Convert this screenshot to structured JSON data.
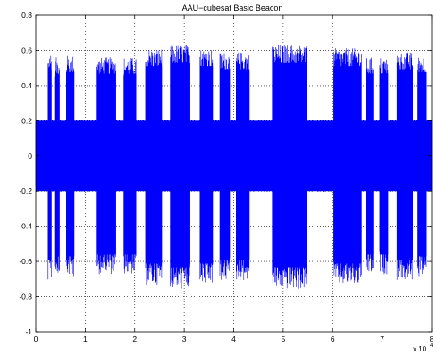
{
  "chart_data": {
    "type": "line",
    "title": "AAU−cubesat Basic Beacon",
    "xlabel": "",
    "ylabel": "",
    "x_multiplier_label": "x 10",
    "x_multiplier_exponent": "4",
    "xlim": [
      0,
      8
    ],
    "ylim": [
      -1,
      0.8
    ],
    "x_ticks": [
      0,
      1,
      2,
      3,
      4,
      5,
      6,
      7,
      8
    ],
    "y_ticks": [
      -1,
      -0.8,
      -0.6,
      -0.4,
      -0.2,
      0,
      0.2,
      0.4,
      0.6,
      0.8
    ],
    "x_tick_labels": [
      "0",
      "1",
      "2",
      "3",
      "4",
      "5",
      "6",
      "7",
      "8"
    ],
    "y_tick_labels": [
      "-1",
      "-0.8",
      "-0.6",
      "-0.4",
      "-0.2",
      "0",
      "0.2",
      "0.4",
      "0.6",
      "0.8"
    ],
    "grid": true,
    "grid_style": "dotted",
    "series": [
      {
        "color": "#0000ff",
        "noise_band": [
          -0.2,
          0.2
        ],
        "segments": [
          {
            "x_start": 0.0,
            "x_end": 0.25,
            "amplitude": 0.2
          },
          {
            "x_start": 0.25,
            "x_end": 0.32,
            "amplitude": 0.58
          },
          {
            "x_start": 0.32,
            "x_end": 0.38,
            "amplitude": 0.2
          },
          {
            "x_start": 0.38,
            "x_end": 0.48,
            "amplitude": 0.55
          },
          {
            "x_start": 0.48,
            "x_end": 0.62,
            "amplitude": 0.2
          },
          {
            "x_start": 0.62,
            "x_end": 0.78,
            "amplitude": 0.56
          },
          {
            "x_start": 0.78,
            "x_end": 1.22,
            "amplitude": 0.2
          },
          {
            "x_start": 1.22,
            "x_end": 1.62,
            "amplitude": 0.55
          },
          {
            "x_start": 1.62,
            "x_end": 1.78,
            "amplitude": 0.2
          },
          {
            "x_start": 1.78,
            "x_end": 2.03,
            "amplitude": 0.55
          },
          {
            "x_start": 2.03,
            "x_end": 2.22,
            "amplitude": 0.2
          },
          {
            "x_start": 2.22,
            "x_end": 2.55,
            "amplitude": 0.6
          },
          {
            "x_start": 2.55,
            "x_end": 2.72,
            "amplitude": 0.2
          },
          {
            "x_start": 2.72,
            "x_end": 3.12,
            "amplitude": 0.62
          },
          {
            "x_start": 3.12,
            "x_end": 3.32,
            "amplitude": 0.2
          },
          {
            "x_start": 3.32,
            "x_end": 3.58,
            "amplitude": 0.6
          },
          {
            "x_start": 3.58,
            "x_end": 3.72,
            "amplitude": 0.2
          },
          {
            "x_start": 3.72,
            "x_end": 3.92,
            "amplitude": 0.58
          },
          {
            "x_start": 3.92,
            "x_end": 4.05,
            "amplitude": 0.2
          },
          {
            "x_start": 4.05,
            "x_end": 4.32,
            "amplitude": 0.58
          },
          {
            "x_start": 4.32,
            "x_end": 4.78,
            "amplitude": 0.2
          },
          {
            "x_start": 4.78,
            "x_end": 5.48,
            "amplitude": 0.62
          },
          {
            "x_start": 5.48,
            "x_end": 6.02,
            "amplitude": 0.2
          },
          {
            "x_start": 6.02,
            "x_end": 6.58,
            "amplitude": 0.6
          },
          {
            "x_start": 6.58,
            "x_end": 6.68,
            "amplitude": 0.2
          },
          {
            "x_start": 6.68,
            "x_end": 6.82,
            "amplitude": 0.55
          },
          {
            "x_start": 6.82,
            "x_end": 6.95,
            "amplitude": 0.2
          },
          {
            "x_start": 6.95,
            "x_end": 7.12,
            "amplitude": 0.55
          },
          {
            "x_start": 7.12,
            "x_end": 7.3,
            "amplitude": 0.2
          },
          {
            "x_start": 7.3,
            "x_end": 7.62,
            "amplitude": 0.58
          },
          {
            "x_start": 7.62,
            "x_end": 7.72,
            "amplitude": 0.2
          },
          {
            "x_start": 7.72,
            "x_end": 7.9,
            "amplitude": 0.56
          },
          {
            "x_start": 7.9,
            "x_end": 8.0,
            "amplitude": 0.2
          }
        ]
      }
    ]
  }
}
